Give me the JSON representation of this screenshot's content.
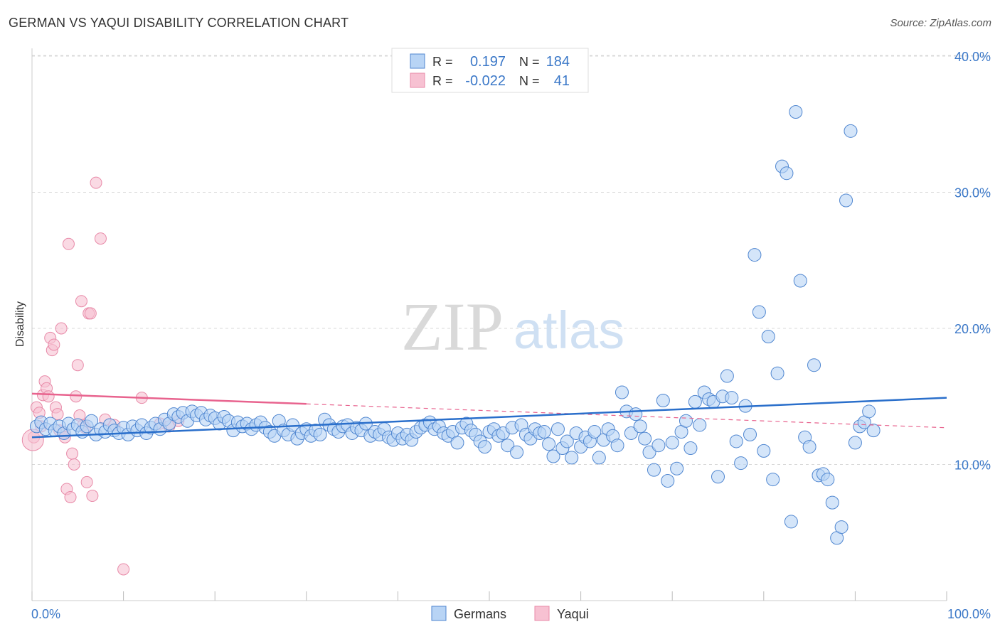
{
  "header": {
    "title": "GERMAN VS YAQUI DISABILITY CORRELATION CHART",
    "source": "Source: ZipAtlas.com"
  },
  "colors": {
    "germans_fill": "#b8d4f5",
    "germans_stroke": "#4f86d0",
    "germans_line": "#2a6fcb",
    "yaqui_fill": "#f7c1d2",
    "yaqui_stroke": "#e88aa8",
    "yaqui_line": "#e8638e",
    "axis_text": "#3b78c8",
    "grid": "#d8d8d8"
  },
  "watermark": {
    "part1": "ZIP",
    "part2": "atlas"
  },
  "chart_data": {
    "type": "scatter",
    "ylabel": "Disability",
    "xlim": [
      0,
      100
    ],
    "ylim": [
      0,
      40
    ],
    "x_tick_labels": [
      "0.0%",
      "100.0%"
    ],
    "y_ticks": [
      10,
      20,
      30,
      40
    ],
    "y_tick_labels": [
      "10.0%",
      "20.0%",
      "30.0%",
      "40.0%"
    ],
    "grid": "horizontal dashed",
    "legend_position": "top-center",
    "legend": [
      {
        "series": "Germans",
        "r_label": "R =",
        "r_value": "0.197",
        "n_label": "N =",
        "n_value": "184"
      },
      {
        "series": "Yaqui",
        "r_label": "R =",
        "r_value": "-0.022",
        "n_label": "N =",
        "n_value": "41"
      }
    ],
    "series": [
      {
        "name": "Germans",
        "trend": {
          "x": [
            0,
            100
          ],
          "y": [
            12.0,
            14.9
          ],
          "solid_until": 100
        },
        "points": [
          [
            0.5,
            12.8
          ],
          [
            1,
            13.1
          ],
          [
            1.5,
            12.6
          ],
          [
            2,
            13.0
          ],
          [
            2.5,
            12.5
          ],
          [
            3,
            12.8
          ],
          [
            3.5,
            12.3
          ],
          [
            4,
            13.0
          ],
          [
            4.5,
            12.6
          ],
          [
            5,
            12.9
          ],
          [
            5.5,
            12.4
          ],
          [
            6,
            12.8
          ],
          [
            6.5,
            13.2
          ],
          [
            7,
            12.2
          ],
          [
            7.5,
            12.6
          ],
          [
            8,
            12.4
          ],
          [
            8.5,
            12.9
          ],
          [
            9,
            12.5
          ],
          [
            9.5,
            12.3
          ],
          [
            10,
            12.7
          ],
          [
            10.5,
            12.2
          ],
          [
            11,
            12.8
          ],
          [
            11.5,
            12.5
          ],
          [
            12,
            12.9
          ],
          [
            12.5,
            12.3
          ],
          [
            13,
            12.7
          ],
          [
            13.5,
            13.0
          ],
          [
            14,
            12.6
          ],
          [
            14.5,
            13.3
          ],
          [
            15,
            13.0
          ],
          [
            15.5,
            13.7
          ],
          [
            16,
            13.5
          ],
          [
            16.5,
            13.8
          ],
          [
            17,
            13.2
          ],
          [
            17.5,
            13.9
          ],
          [
            18,
            13.6
          ],
          [
            18.5,
            13.8
          ],
          [
            19,
            13.3
          ],
          [
            19.5,
            13.6
          ],
          [
            20,
            13.4
          ],
          [
            20.5,
            13.0
          ],
          [
            21,
            13.5
          ],
          [
            21.5,
            13.2
          ],
          [
            22,
            12.5
          ],
          [
            22.5,
            13.1
          ],
          [
            23,
            12.8
          ],
          [
            23.5,
            13.0
          ],
          [
            24,
            12.6
          ],
          [
            24.5,
            12.9
          ],
          [
            25,
            13.1
          ],
          [
            25.5,
            12.7
          ],
          [
            26,
            12.4
          ],
          [
            26.5,
            12.1
          ],
          [
            27,
            13.2
          ],
          [
            27.5,
            12.5
          ],
          [
            28,
            12.2
          ],
          [
            28.5,
            12.9
          ],
          [
            29,
            11.9
          ],
          [
            29.5,
            12.3
          ],
          [
            30,
            12.6
          ],
          [
            30.5,
            12.1
          ],
          [
            31,
            12.5
          ],
          [
            31.5,
            12.2
          ],
          [
            32,
            13.3
          ],
          [
            32.5,
            12.9
          ],
          [
            33,
            12.6
          ],
          [
            33.5,
            12.4
          ],
          [
            34,
            12.8
          ],
          [
            34.5,
            12.9
          ],
          [
            35,
            12.3
          ],
          [
            35.5,
            12.7
          ],
          [
            36,
            12.5
          ],
          [
            36.5,
            13.0
          ],
          [
            37,
            12.1
          ],
          [
            37.5,
            12.4
          ],
          [
            38,
            12.2
          ],
          [
            38.5,
            12.6
          ],
          [
            39,
            12.0
          ],
          [
            39.5,
            11.8
          ],
          [
            40,
            12.3
          ],
          [
            40.5,
            11.9
          ],
          [
            41,
            12.2
          ],
          [
            41.5,
            11.8
          ],
          [
            42,
            12.4
          ],
          [
            42.5,
            12.7
          ],
          [
            43,
            12.9
          ],
          [
            43.5,
            13.1
          ],
          [
            44,
            12.6
          ],
          [
            44.5,
            12.8
          ],
          [
            45,
            12.3
          ],
          [
            45.5,
            12.1
          ],
          [
            46,
            12.4
          ],
          [
            46.5,
            11.6
          ],
          [
            47,
            12.7
          ],
          [
            47.5,
            13.0
          ],
          [
            48,
            12.5
          ],
          [
            48.5,
            12.2
          ],
          [
            49,
            11.7
          ],
          [
            49.5,
            11.3
          ],
          [
            50,
            12.4
          ],
          [
            50.5,
            12.6
          ],
          [
            51,
            12.1
          ],
          [
            51.5,
            12.3
          ],
          [
            52,
            11.4
          ],
          [
            52.5,
            12.7
          ],
          [
            53,
            10.9
          ],
          [
            53.5,
            12.9
          ],
          [
            54,
            12.2
          ],
          [
            54.5,
            11.9
          ],
          [
            55,
            12.6
          ],
          [
            55.5,
            12.3
          ],
          [
            56,
            12.4
          ],
          [
            56.5,
            11.5
          ],
          [
            57,
            10.6
          ],
          [
            57.5,
            12.6
          ],
          [
            58,
            11.2
          ],
          [
            58.5,
            11.7
          ],
          [
            59,
            10.5
          ],
          [
            59.5,
            12.3
          ],
          [
            60,
            11.3
          ],
          [
            60.5,
            12.0
          ],
          [
            61,
            11.7
          ],
          [
            61.5,
            12.4
          ],
          [
            62,
            10.5
          ],
          [
            62.5,
            11.8
          ],
          [
            63,
            12.6
          ],
          [
            63.5,
            12.1
          ],
          [
            64,
            11.4
          ],
          [
            64.5,
            15.3
          ],
          [
            65,
            13.9
          ],
          [
            65.5,
            12.3
          ],
          [
            66,
            13.7
          ],
          [
            66.5,
            12.8
          ],
          [
            67,
            11.9
          ],
          [
            67.5,
            10.9
          ],
          [
            68,
            9.6
          ],
          [
            68.5,
            11.4
          ],
          [
            69,
            14.7
          ],
          [
            69.5,
            8.8
          ],
          [
            70,
            11.6
          ],
          [
            70.5,
            9.7
          ],
          [
            71,
            12.4
          ],
          [
            71.5,
            13.2
          ],
          [
            72,
            11.2
          ],
          [
            72.5,
            14.6
          ],
          [
            73,
            12.9
          ],
          [
            73.5,
            15.3
          ],
          [
            74,
            14.8
          ],
          [
            74.5,
            14.6
          ],
          [
            75,
            9.1
          ],
          [
            75.5,
            15.0
          ],
          [
            76,
            16.5
          ],
          [
            76.5,
            14.9
          ],
          [
            77,
            11.7
          ],
          [
            77.5,
            10.1
          ],
          [
            78,
            14.3
          ],
          [
            78.5,
            12.2
          ],
          [
            79,
            25.4
          ],
          [
            79.5,
            21.2
          ],
          [
            80,
            11.0
          ],
          [
            80.5,
            19.4
          ],
          [
            81,
            8.9
          ],
          [
            81.5,
            16.7
          ],
          [
            82,
            31.9
          ],
          [
            82.5,
            31.4
          ],
          [
            83,
            5.8
          ],
          [
            83.5,
            35.9
          ],
          [
            84,
            23.5
          ],
          [
            84.5,
            12.0
          ],
          [
            85,
            11.3
          ],
          [
            85.5,
            17.3
          ],
          [
            86,
            9.2
          ],
          [
            86.5,
            9.3
          ],
          [
            87,
            8.9
          ],
          [
            87.5,
            7.2
          ],
          [
            88,
            4.6
          ],
          [
            88.5,
            5.4
          ],
          [
            89,
            29.4
          ],
          [
            89.5,
            34.5
          ],
          [
            90,
            11.6
          ],
          [
            90.5,
            12.8
          ],
          [
            91,
            13.1
          ],
          [
            91.5,
            13.9
          ],
          [
            92,
            12.5
          ]
        ]
      },
      {
        "name": "Yaqui",
        "trend": {
          "x": [
            0,
            100
          ],
          "y": [
            15.2,
            12.7
          ],
          "solid_until": 30
        },
        "points": [
          [
            0.2,
            12.0
          ],
          [
            0.5,
            14.2
          ],
          [
            0.8,
            13.8
          ],
          [
            1.0,
            12.8
          ],
          [
            1.2,
            15.1
          ],
          [
            1.4,
            16.1
          ],
          [
            1.6,
            15.6
          ],
          [
            1.8,
            15.0
          ],
          [
            2.0,
            19.3
          ],
          [
            2.2,
            18.4
          ],
          [
            2.4,
            18.8
          ],
          [
            2.6,
            14.2
          ],
          [
            2.8,
            13.7
          ],
          [
            3.0,
            12.5
          ],
          [
            3.2,
            20.0
          ],
          [
            3.4,
            12.3
          ],
          [
            3.6,
            12.0
          ],
          [
            3.8,
            8.2
          ],
          [
            4.0,
            26.2
          ],
          [
            4.2,
            7.6
          ],
          [
            4.4,
            10.8
          ],
          [
            4.6,
            10.0
          ],
          [
            4.8,
            15.0
          ],
          [
            5.0,
            17.3
          ],
          [
            5.2,
            13.6
          ],
          [
            5.4,
            22.0
          ],
          [
            5.6,
            12.9
          ],
          [
            5.8,
            12.7
          ],
          [
            6.0,
            8.7
          ],
          [
            6.2,
            21.1
          ],
          [
            6.4,
            21.1
          ],
          [
            6.6,
            7.7
          ],
          [
            7.0,
            30.7
          ],
          [
            7.5,
            26.6
          ],
          [
            8.0,
            13.3
          ],
          [
            9.0,
            12.9
          ],
          [
            10.0,
            2.3
          ],
          [
            12.0,
            14.9
          ],
          [
            14.0,
            13.0
          ],
          [
            15.0,
            12.8
          ],
          [
            16.0,
            13.2
          ]
        ]
      }
    ]
  }
}
